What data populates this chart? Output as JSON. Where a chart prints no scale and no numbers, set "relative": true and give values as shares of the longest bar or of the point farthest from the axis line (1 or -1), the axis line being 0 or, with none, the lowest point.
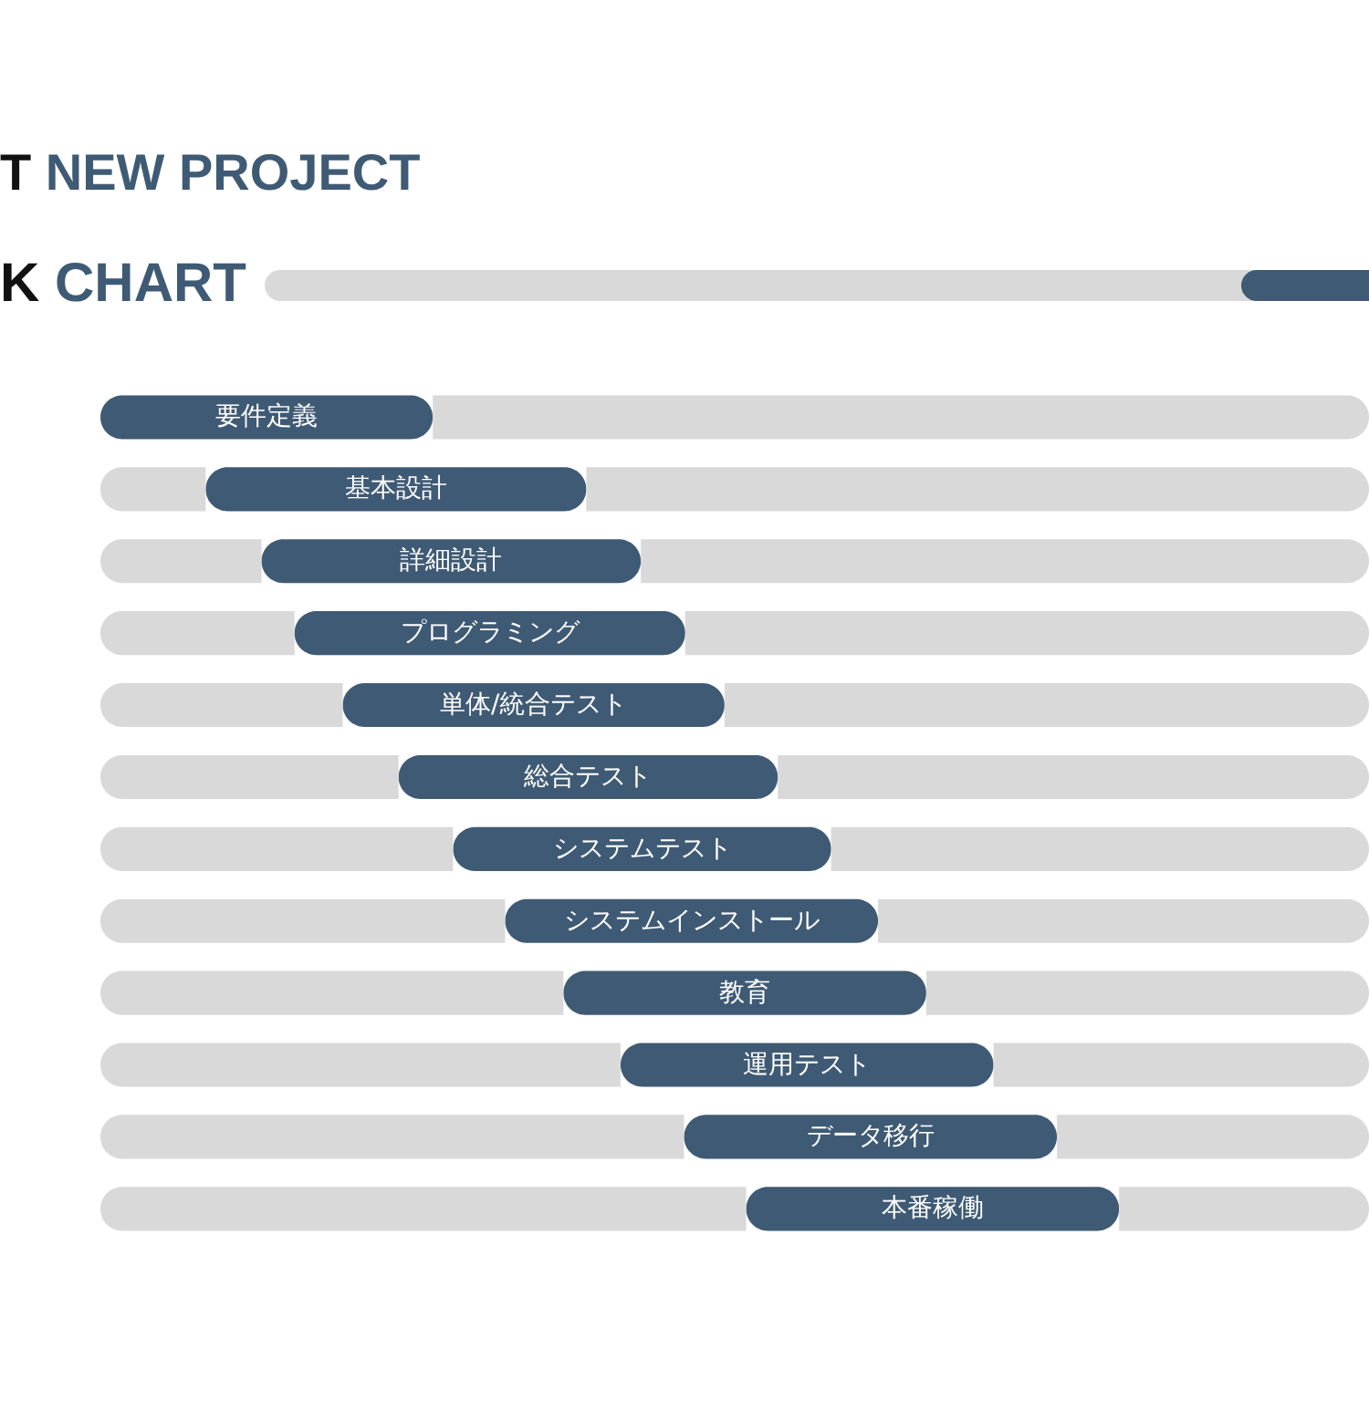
{
  "chart_data": {
    "type": "bar",
    "orientation": "horizontal",
    "stacked": true,
    "relative": true,
    "title": "T NEW PROJECT",
    "subtitle": "K CHART",
    "categories": [
      "要件定義",
      "基本設計",
      "詳細設計",
      "プログラミング",
      "単体/統合テスト",
      "総合テスト",
      "システムテスト",
      "システムインストール",
      "教育",
      "運用テスト",
      "データ移行",
      "本番稼働"
    ],
    "series": [
      {
        "color": "#d9d9d9",
        "values": [
          null,
          0.083,
          0.127,
          0.153,
          0.191,
          0.235,
          0.278,
          0.319,
          0.365,
          0.41,
          0.46,
          0.509
        ]
      },
      {
        "color": "#3f5a74",
        "values": [
          0.262,
          0.3,
          0.299,
          0.308,
          0.301,
          0.299,
          0.298,
          0.294,
          0.286,
          0.294,
          0.294,
          0.294
        ]
      },
      {
        "color": "#d9d9d9",
        "values": [
          0.738,
          0.617,
          0.574,
          0.539,
          0.508,
          0.466,
          0.424,
          0.387,
          0.349,
          0.296,
          0.246,
          0.197
        ]
      }
    ]
  }
}
